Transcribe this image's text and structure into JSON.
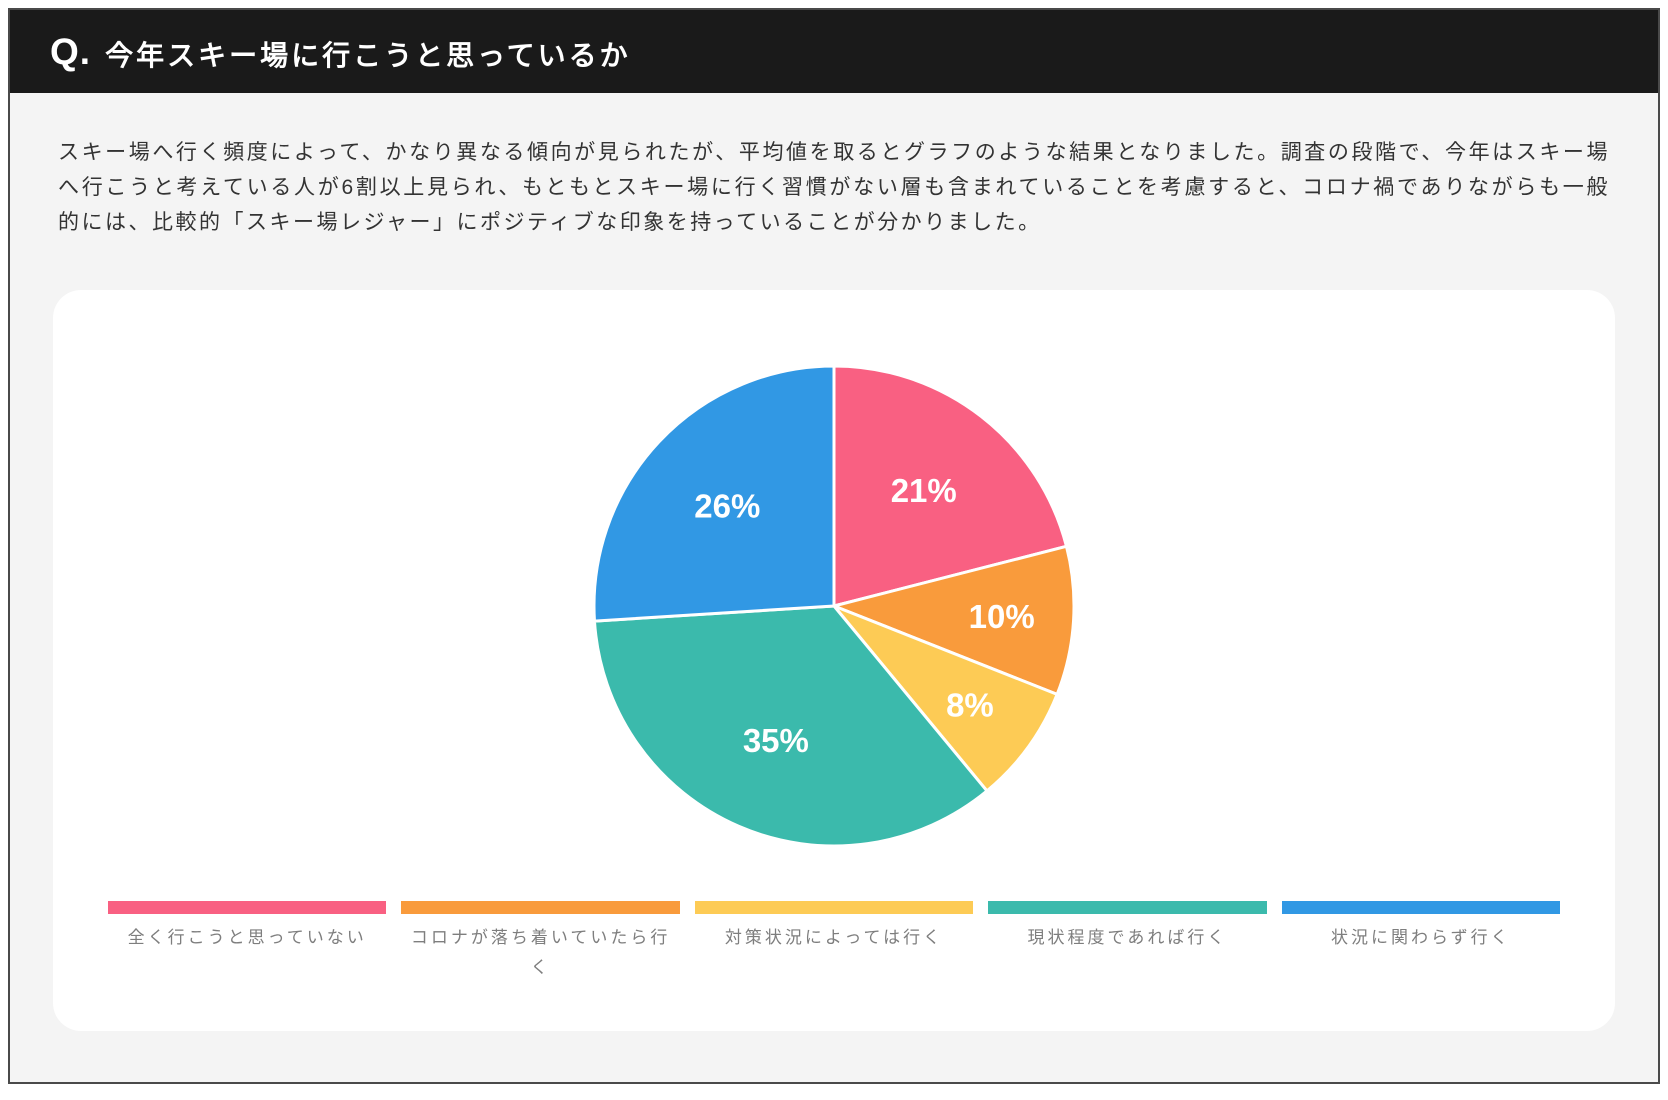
{
  "header": {
    "prefix": "Q.",
    "title": "今年スキー場に行こうと思っているか"
  },
  "summary": {
    "text": "スキー場へ行く頻度によって、かなり異なる傾向が見られたが、平均値を取るとグラフのような結果となりました。調査の段階で、今年はスキー場へ行こうと考えている人が6割以上見られ、もともとスキー場に行く習慣がない層も含まれていることを考慮すると、コロナ禍でありながらも一般的には、比較的「スキー場レジャー」にポジティブな印象を持っていることが分かりました。"
  },
  "chart_data": {
    "type": "pie",
    "title": "今年スキー場に行こうと思っているか",
    "unit": "%",
    "slices": [
      {
        "label": "全く行こうと思っていない",
        "value": 21,
        "display": "21%",
        "color": "#f96082"
      },
      {
        "label": "コロナが落ち着いていたら行く",
        "value": 10,
        "display": "10%",
        "color": "#f99b3c"
      },
      {
        "label": "対策状況によっては行く",
        "value": 8,
        "display": "8%",
        "color": "#fdcb55"
      },
      {
        "label": "現状程度であれば行く",
        "value": 35,
        "display": "35%",
        "color": "#3bbaac"
      },
      {
        "label": "状況に関わらず行く",
        "value": 26,
        "display": "26%",
        "color": "#3198e4"
      }
    ],
    "layout": {
      "start_angle_deg": 0,
      "clockwise": true,
      "radius_px": 240,
      "label_radius_frac": [
        0.61,
        0.7,
        0.7,
        0.61,
        0.61
      ],
      "slice_border_color": "#ffffff",
      "slice_border_width": 3,
      "value_label_color": "#ffffff",
      "legend_position": "bottom"
    }
  },
  "colors": {
    "header_bg": "#1a1a1a",
    "page_bg": "#f4f4f4",
    "card_bg": "#ffffff",
    "body_text": "#333333",
    "legend_text": "#7e7e7e",
    "frame_border": "#4a4a4a"
  }
}
